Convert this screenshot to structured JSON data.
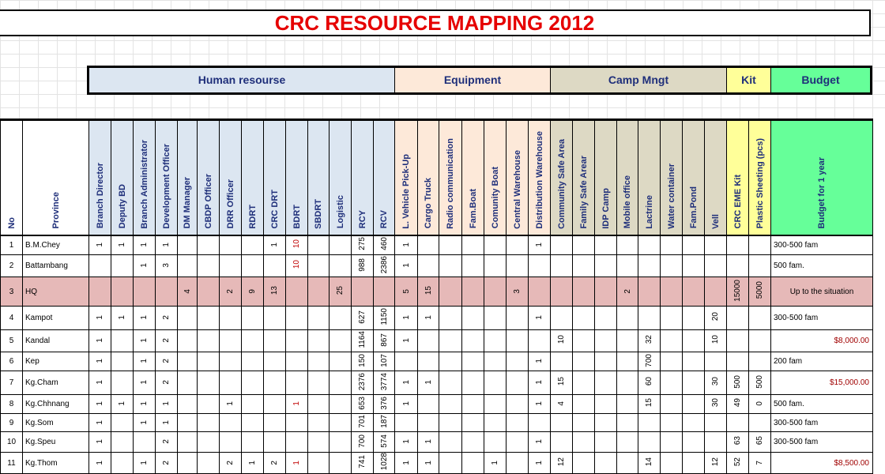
{
  "title": "CRC RESOURCE MAPPING 2012",
  "groups": [
    {
      "label": "Human resourse",
      "color": "#dce6f1"
    },
    {
      "label": "Equipment",
      "color": "#fde9d9"
    },
    {
      "label": "Camp Mngt",
      "color": "#ddd9c4"
    },
    {
      "label": "Kit",
      "color": "#ffff99"
    },
    {
      "label": "Budget",
      "color": "#66ff99"
    }
  ],
  "headers": {
    "no": "No",
    "province": "Province",
    "resources": [
      "Branch Director",
      "Deputy BD",
      "Branch Administrator",
      "Development Officer",
      "DM Manager",
      "CBDP Officer",
      "DRR  Officer",
      "RDRT",
      "CRC DRT",
      "BDRT",
      "SBDRT",
      "Logistic",
      "RCY",
      "RCV",
      "L. Vehicle Pick-Up",
      "Cargo Truck",
      "Radio communication",
      "Fam.Boat",
      "Comunity Boat",
      "Central Warehouse",
      "Distribution Warehouse",
      "Community Safe Area",
      "Family Safe Arear",
      "IDP Camp",
      "Mobile office",
      "Lactrine",
      "Water container",
      "Fam.Pond",
      "Vell",
      "CRC EME Kit",
      "Plastic Sheeting (pcs)"
    ],
    "budget": "Budget for 1 year"
  },
  "rows": [
    {
      "no": "1",
      "province": "B.M.Chey",
      "values": [
        "1",
        "1",
        "1",
        "1",
        "",
        "",
        "",
        "",
        "1",
        "10",
        "",
        "",
        "275",
        "460",
        "1",
        "",
        "",
        "",
        "",
        "",
        "1",
        "",
        "",
        "",
        "",
        "",
        "",
        "",
        "",
        "",
        ""
      ],
      "budget": "300-500 fam"
    },
    {
      "no": "2",
      "province": "Battambang",
      "values": [
        "",
        "",
        "1",
        "3",
        "",
        "",
        "",
        "",
        "",
        "10",
        "",
        "",
        "988",
        "2386",
        "1",
        "",
        "",
        "",
        "",
        "",
        "",
        "",
        "",
        "",
        "",
        "",
        "",
        "",
        "",
        "",
        ""
      ],
      "budget": "500 fam."
    },
    {
      "no": "3",
      "province": "HQ",
      "values": [
        "",
        "",
        "",
        "",
        "4",
        "",
        "2",
        "9",
        "13",
        "",
        "",
        "25",
        "",
        "",
        "5",
        "15",
        "",
        "",
        "",
        "3",
        "",
        "",
        "",
        "",
        "2",
        "",
        "",
        "",
        "",
        "15000",
        "5000"
      ],
      "budget": "Up to the situation"
    },
    {
      "no": "4",
      "province": "Kampot",
      "values": [
        "1",
        "1",
        "1",
        "2",
        "",
        "",
        "",
        "",
        "",
        "",
        "",
        "",
        "627",
        "1150",
        "1",
        "1",
        "",
        "",
        "",
        "",
        "1",
        "",
        "",
        "",
        "",
        "",
        "",
        "",
        "20",
        "",
        ""
      ],
      "budget": "300-500 fam"
    },
    {
      "no": "5",
      "province": "Kandal",
      "values": [
        "1",
        "",
        "1",
        "2",
        "",
        "",
        "",
        "",
        "",
        "",
        "",
        "",
        "1164",
        "867",
        "1",
        "",
        "",
        "",
        "",
        "",
        "",
        "10",
        "",
        "",
        "",
        "32",
        "",
        "",
        "10",
        "",
        ""
      ],
      "budget": "$8,000.00"
    },
    {
      "no": "6",
      "province": "Kep",
      "values": [
        "1",
        "",
        "1",
        "2",
        "",
        "",
        "",
        "",
        "",
        "",
        "",
        "",
        "150",
        "107",
        "",
        "",
        "",
        "",
        "",
        "",
        "1",
        "",
        "",
        "",
        "",
        "700",
        "",
        "",
        "",
        "",
        ""
      ],
      "budget": "200 fam"
    },
    {
      "no": "7",
      "province": "Kg.Cham",
      "values": [
        "1",
        "",
        "1",
        "2",
        "",
        "",
        "",
        "",
        "",
        "",
        "",
        "",
        "2376",
        "3774",
        "1",
        "1",
        "",
        "",
        "",
        "",
        "1",
        "15",
        "",
        "",
        "",
        "60",
        "",
        "",
        "30",
        "500",
        "500"
      ],
      "budget": "$15,000.00"
    },
    {
      "no": "8",
      "province": "Kg.Chhnang",
      "values": [
        "1",
        "1",
        "1",
        "1",
        "",
        "",
        "1",
        "",
        "",
        "1",
        "",
        "",
        "653",
        "376",
        "1",
        "",
        "",
        "",
        "",
        "",
        "1",
        "4",
        "",
        "",
        "",
        "15",
        "",
        "",
        "30",
        "49",
        "0"
      ],
      "budget": "500 fam."
    },
    {
      "no": "9",
      "province": "Kg.Som",
      "values": [
        "1",
        "",
        "1",
        "1",
        "",
        "",
        "",
        "",
        "",
        "",
        "",
        "",
        "701",
        "187",
        "",
        "",
        "",
        "",
        "",
        "",
        "",
        "",
        "",
        "",
        "",
        "",
        "",
        "",
        "",
        "",
        ""
      ],
      "budget": "300-500 fam"
    },
    {
      "no": "10",
      "province": "Kg.Speu",
      "values": [
        "1",
        "",
        "",
        "2",
        "",
        "",
        "",
        "",
        "",
        "",
        "",
        "",
        "700",
        "574",
        "1",
        "1",
        "",
        "",
        "",
        "",
        "1",
        "",
        "",
        "",
        "",
        "",
        "",
        "",
        "",
        "63",
        "65"
      ],
      "budget": "300-500 fam"
    },
    {
      "no": "11",
      "province": "Kg.Thom",
      "values": [
        "1",
        "",
        "1",
        "2",
        "",
        "",
        "2",
        "1",
        "2",
        "1",
        "",
        "",
        "741",
        "1028",
        "1",
        "1",
        "",
        "",
        "1",
        "",
        "1",
        "12",
        "",
        "",
        "",
        "14",
        "",
        "",
        "12",
        "52",
        "7"
      ],
      "budget": "$8,500.00"
    }
  ]
}
